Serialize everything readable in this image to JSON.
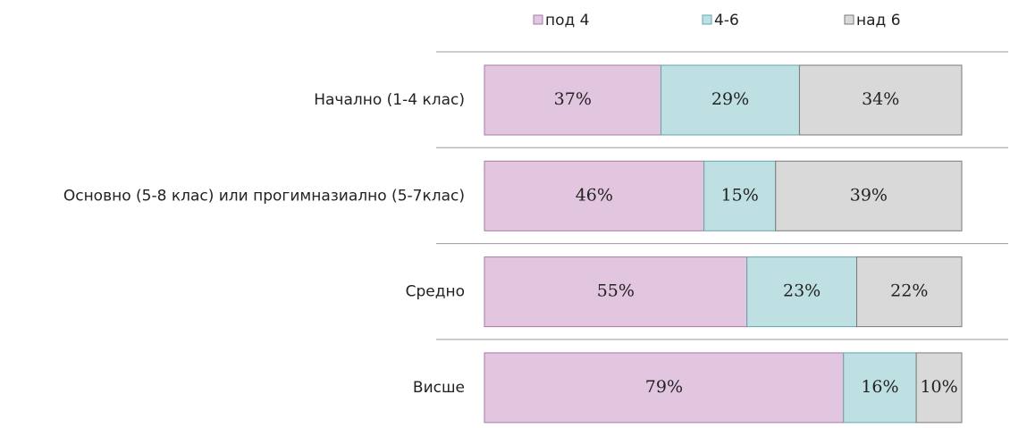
{
  "chart_data": {
    "type": "stacked_bar_horizontal_percent",
    "categories": [
      "Начално (1-4 клас)",
      "Основно (5-8 клас) или прогимназиално (5-7клас)",
      "Средно",
      "Висше"
    ],
    "series": [
      {
        "name": "под 4",
        "color": "#e2c6e0",
        "values": [
          37,
          46,
          55,
          79
        ],
        "value_labels": [
          "37%",
          "46%",
          "55%",
          "79%"
        ]
      },
      {
        "name": "4-6",
        "color": "#bfe0e3",
        "values": [
          29,
          15,
          23,
          16
        ],
        "value_labels": [
          "29%",
          "15%",
          "23%",
          "16%"
        ]
      },
      {
        "name": "над 6",
        "color": "#d9d9d9",
        "values": [
          34,
          39,
          22,
          10
        ],
        "value_labels": [
          "34%",
          "39%",
          "22%",
          "10%"
        ]
      }
    ],
    "legend": "top"
  }
}
